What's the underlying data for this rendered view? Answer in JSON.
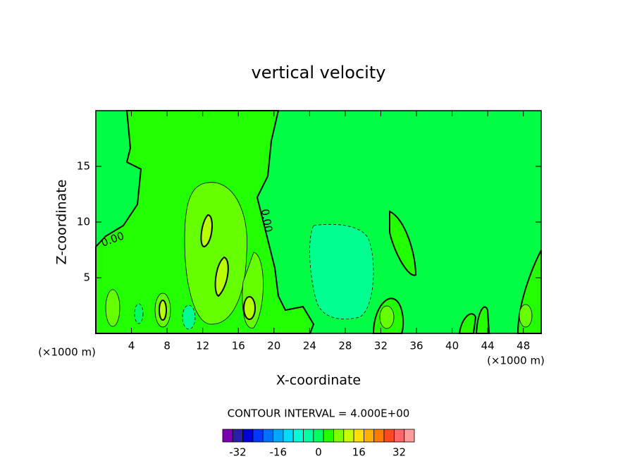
{
  "chart_data": {
    "type": "contour",
    "title": "vertical velocity",
    "xlabel": "X-coordinate",
    "ylabel": "Z-coordinate",
    "x_unit_label": "(×1000 m)",
    "xlim": [
      0,
      50
    ],
    "xticks": [
      4,
      8,
      12,
      16,
      20,
      24,
      28,
      32,
      36,
      40,
      44,
      48
    ],
    "ylim": [
      0,
      20
    ],
    "yticks": [
      5,
      10,
      15
    ],
    "contour_labels": [
      "0.00",
      "0.00"
    ],
    "contour_interval_text": "CONTOUR INTERVAL = 4.000E+00",
    "colorbar": {
      "clim": [
        -38,
        38
      ],
      "ticks": [
        -32,
        -16,
        0,
        16,
        32
      ],
      "colors": [
        "#7a00b0",
        "#2a20a8",
        "#0000d8",
        "#0038ff",
        "#0070ff",
        "#00a8ff",
        "#00dcff",
        "#00ffd8",
        "#00ffa0",
        "#00ff60",
        "#22ff00",
        "#80ff00",
        "#c8ff00",
        "#ffe000",
        "#ffb000",
        "#ff7a00",
        "#ff4a20",
        "#ff6868",
        "#ff9c9c"
      ]
    }
  }
}
